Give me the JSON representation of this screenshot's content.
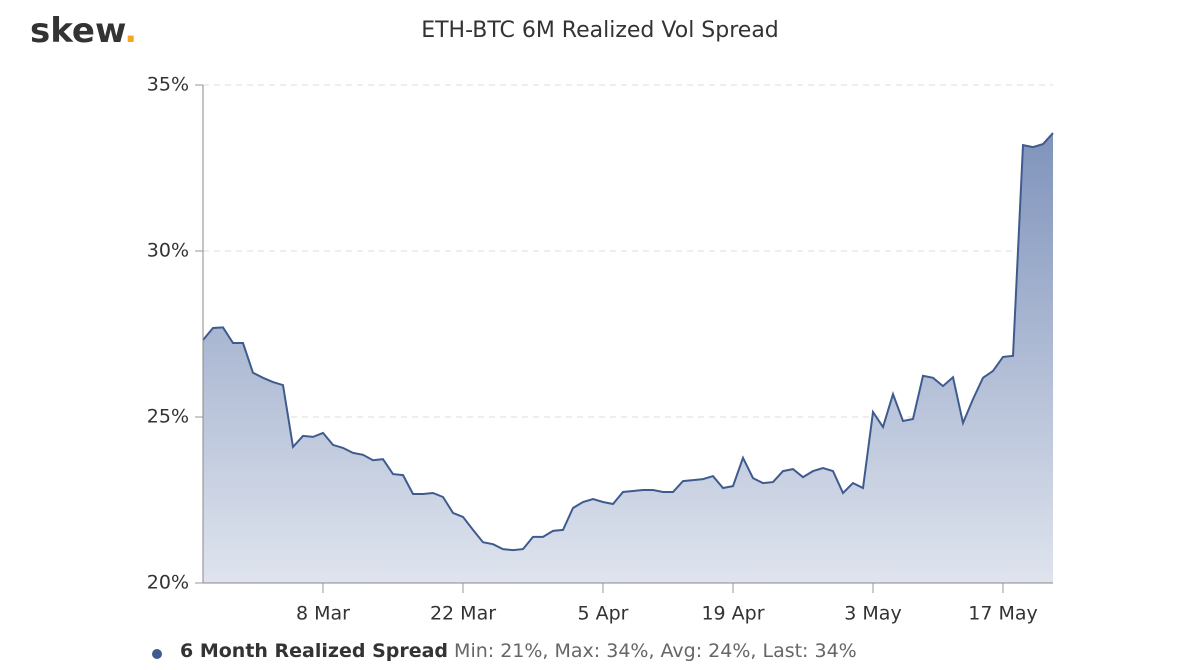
{
  "logo": {
    "text": "skew",
    "dot": "."
  },
  "chart_data": {
    "type": "area",
    "title": "ETH-BTC 6M Realized Vol Spread",
    "x": [
      0,
      1,
      2,
      3,
      4,
      5,
      6,
      7,
      8,
      9,
      10,
      11,
      12,
      13,
      14,
      15,
      16,
      17,
      18,
      19,
      20,
      21,
      22,
      23,
      24,
      25,
      26,
      27,
      28,
      29,
      30,
      31,
      32,
      33,
      34,
      35,
      36,
      37,
      38,
      39,
      40,
      41,
      42,
      43,
      44,
      45,
      46,
      47,
      48,
      49,
      50,
      51,
      52,
      53,
      54,
      55,
      56,
      57,
      58,
      59,
      60,
      61,
      62,
      63,
      64,
      65,
      66,
      67,
      68,
      69,
      70,
      71,
      72,
      73,
      74,
      75,
      76,
      77,
      78,
      79,
      80,
      81,
      82,
      83,
      84,
      85
    ],
    "series": [
      {
        "name": "6 Month Realized Spread",
        "color": "#3f5b8e",
        "values": [
          27.32,
          27.68,
          27.7,
          27.23,
          27.23,
          26.33,
          26.18,
          26.05,
          25.96,
          24.1,
          24.43,
          24.4,
          24.52,
          24.16,
          24.07,
          23.92,
          23.86,
          23.7,
          23.73,
          23.28,
          23.25,
          22.68,
          22.68,
          22.71,
          22.59,
          22.11,
          21.99,
          21.6,
          21.23,
          21.17,
          21.02,
          20.99,
          21.02,
          21.39,
          21.39,
          21.57,
          21.6,
          22.26,
          22.44,
          22.53,
          22.44,
          22.38,
          22.74,
          22.77,
          22.8,
          22.8,
          22.74,
          22.74,
          23.07,
          23.1,
          23.13,
          23.22,
          22.86,
          22.92,
          23.77,
          23.16,
          23.01,
          23.04,
          23.37,
          23.43,
          23.19,
          23.37,
          23.46,
          23.37,
          22.71,
          23.01,
          22.86,
          25.15,
          24.7,
          25.69,
          24.88,
          24.94,
          26.24,
          26.18,
          25.93,
          26.2,
          24.82,
          25.54,
          26.18,
          26.39,
          26.81,
          26.84,
          33.19,
          33.13,
          33.22,
          33.55
        ]
      }
    ],
    "legend_stats": "Min: 21%, Max: 34%, Avg: 24%, Last: 34%",
    "xlim": [
      0,
      85
    ],
    "xticks": [
      {
        "value": 12,
        "label": "8 Mar"
      },
      {
        "value": 26,
        "label": "22 Mar"
      },
      {
        "value": 40,
        "label": "5 Apr"
      },
      {
        "value": 53,
        "label": "19 Apr"
      },
      {
        "value": 67,
        "label": "3 May"
      },
      {
        "value": 80,
        "label": "17 May"
      }
    ],
    "ylim": [
      20,
      35
    ],
    "yticks": [
      {
        "value": 20,
        "label": "20%"
      },
      {
        "value": 25,
        "label": "25%"
      },
      {
        "value": 30,
        "label": "30%"
      },
      {
        "value": 35,
        "label": "35%"
      }
    ],
    "grid": true,
    "legend": "bottom"
  }
}
